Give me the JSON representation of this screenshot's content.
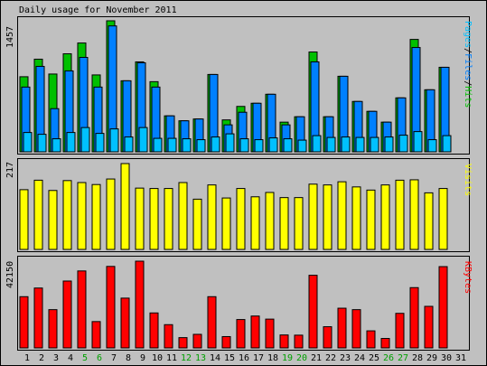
{
  "title": "Daily usage for November 2011",
  "colors": {
    "hits": "#00c000",
    "files": "#0080ff",
    "pages": "#00c0ff",
    "visits": "#ffff00",
    "kbytes": "#ff0000",
    "weekend": "#00a000",
    "weekday": "#000000",
    "background": "#c0c0c0"
  },
  "chart_data": [
    {
      "type": "bar",
      "categories": [
        "1",
        "2",
        "3",
        "4",
        "5",
        "6",
        "7",
        "8",
        "9",
        "10",
        "11",
        "12",
        "13",
        "14",
        "15",
        "16",
        "17",
        "18",
        "19",
        "20",
        "21",
        "22",
        "23",
        "24",
        "25",
        "26",
        "27",
        "28",
        "29",
        "30",
        "31"
      ],
      "weekend_days": [
        "5",
        "6",
        "12",
        "13",
        "19",
        "20",
        "26",
        "27"
      ],
      "ymax_label": "1457",
      "ylim": [
        0,
        1457
      ],
      "series": [
        {
          "name": "Hits",
          "values": [
            835,
            1030,
            865,
            1090,
            1210,
            855,
            1457,
            790,
            1000,
            780,
            400,
            345,
            365,
            860,
            355,
            505,
            540,
            640,
            330,
            390,
            1110,
            390,
            840,
            560,
            450,
            330,
            600,
            1250,
            690,
            940,
            0
          ]
        },
        {
          "name": "Files",
          "values": [
            720,
            950,
            480,
            900,
            1050,
            720,
            1400,
            790,
            990,
            720,
            400,
            345,
            365,
            860,
            300,
            440,
            540,
            640,
            300,
            390,
            1000,
            390,
            840,
            560,
            450,
            330,
            600,
            1160,
            690,
            940,
            0
          ]
        },
        {
          "name": "Pages",
          "values": [
            215,
            195,
            145,
            215,
            270,
            205,
            255,
            165,
            270,
            150,
            150,
            145,
            135,
            165,
            200,
            145,
            135,
            155,
            145,
            130,
            180,
            160,
            165,
            160,
            160,
            165,
            185,
            225,
            135,
            180,
            0
          ]
        }
      ],
      "right_label": [
        "Pages",
        "/",
        "Files",
        "/",
        "Hits"
      ]
    },
    {
      "type": "bar",
      "categories": [
        "1",
        "2",
        "3",
        "4",
        "5",
        "6",
        "7",
        "8",
        "9",
        "10",
        "11",
        "12",
        "13",
        "14",
        "15",
        "16",
        "17",
        "18",
        "19",
        "20",
        "21",
        "22",
        "23",
        "24",
        "25",
        "26",
        "27",
        "28",
        "29",
        "30",
        "31"
      ],
      "ymax_label": "217",
      "ylim": [
        0,
        217
      ],
      "series": [
        {
          "name": "Visits",
          "values": [
            151,
            175,
            149,
            174,
            169,
            164,
            178,
            217,
            155,
            154,
            154,
            169,
            127,
            163,
            130,
            154,
            133,
            144,
            131,
            131,
            165,
            163,
            171,
            158,
            150,
            163,
            175,
            176,
            143,
            154,
            0
          ]
        }
      ],
      "right_label": [
        "Visits"
      ]
    },
    {
      "type": "bar",
      "categories": [
        "1",
        "2",
        "3",
        "4",
        "5",
        "6",
        "7",
        "8",
        "9",
        "10",
        "11",
        "12",
        "13",
        "14",
        "15",
        "16",
        "17",
        "18",
        "19",
        "20",
        "21",
        "22",
        "23",
        "24",
        "25",
        "26",
        "27",
        "28",
        "29",
        "30",
        "31"
      ],
      "ymax_label": "42150",
      "ylim": [
        0,
        42150
      ],
      "series": [
        {
          "name": "KBytes",
          "values": [
            24900,
            29100,
            18600,
            32500,
            37400,
            12800,
            39600,
            24200,
            42150,
            17000,
            11300,
            5000,
            6600,
            24900,
            5500,
            13800,
            15500,
            14000,
            6300,
            6200,
            35300,
            10300,
            19300,
            18600,
            8300,
            4600,
            16800,
            29300,
            20200,
            39500,
            0
          ]
        }
      ],
      "right_label": [
        "KBytes"
      ]
    }
  ]
}
